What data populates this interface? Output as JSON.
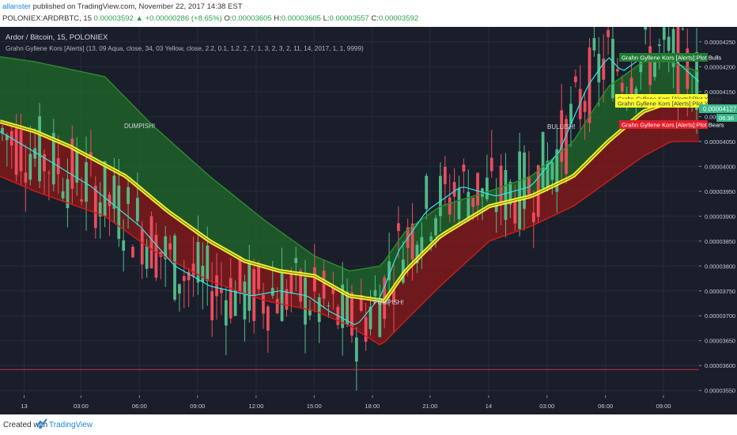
{
  "header": {
    "author": "allanster",
    "published_text": "published on TradingView.com, November 22, 2017 14:38 EST",
    "symbol": "POLONIEX:ARDRBTC, 15",
    "last": "0.00003592",
    "change_arrow": "▲",
    "change": "+0.00000286 (+8.65%)",
    "o_label": "O:",
    "o": "0.00003605",
    "h_label": "H:",
    "h": "0.00003605",
    "l_label": "L:",
    "l": "0.00003557",
    "c_label": "C:",
    "c": "0.00003592"
  },
  "chart_title": "Ardor / Bitcoin, 15, POLONIEX",
  "indicator_title": "Grahn Gyllene Kors [Alerts] (13, 09 Aqua, close, 34, 03 Yellow, close, 2.2, 0.1, 1.2, 2, 7, 1, 3, 2, 3, 2, 11, 14, 2017, 1, 1, 9999)",
  "annotations": {
    "dumpish": "DUMPISH!",
    "pumpish": "PUMPISH!",
    "bullish": "BULLISH!"
  },
  "price_tags": {
    "plot_bulls": "Grahn Gyllene Kors [Alerts]:Plot Bulls",
    "plot_yellow_a": "Grahn Gyllene Kors [Alerts]:Plot Yellow",
    "plot_yellow_b": "Grahn Gyllene Kors [Alerts]:Plot Yellow",
    "plot_bears": "Grahn Gyllene Kors [Alerts]:Plot Bears",
    "last_price": "0.00004127",
    "countdown": "06:36"
  },
  "footer": {
    "created_with": "Created with",
    "brand": "TradingView"
  },
  "colors": {
    "background": "#1a1e2b",
    "up_candle": "#53b987",
    "down_candle": "#eb4d5c",
    "aqua": "#2ee8e8",
    "yellow": "#ffff2e",
    "bull_fill": "#1f6b2a",
    "bear_fill": "#8b1a1a",
    "upper_band": "#2e8b2e",
    "lower_band": "#d11a1a"
  },
  "chart_data": {
    "type": "line",
    "ylim": [
      3.54e-05,
      4.28e-05
    ],
    "yticks": [
      "0.00004250",
      "0.00004200",
      "0.00004150",
      "0.00004100",
      "0.00004050",
      "0.00004000",
      "0.00003950",
      "0.00003900",
      "0.00003850",
      "0.00003800",
      "0.00003750",
      "0.00003700",
      "0.00003650",
      "0.00003600",
      "0.00003550"
    ],
    "ytick_values": [
      4.25e-05,
      4.2e-05,
      4.15e-05,
      4.1e-05,
      4.05e-05,
      4e-05,
      3.95e-05,
      3.9e-05,
      3.85e-05,
      3.8e-05,
      3.75e-05,
      3.7e-05,
      3.65e-05,
      3.6e-05,
      3.55e-05
    ],
    "xticks": [
      "13",
      "03:00",
      "06:00",
      "09:00",
      "12:00",
      "15:00",
      "18:00",
      "21:00",
      "14",
      "03:00",
      "06:00",
      "09:00",
      "12:00"
    ],
    "xtick_pos": [
      0.0345,
      0.1158,
      0.1995,
      0.2826,
      0.3664,
      0.4494,
      0.5327,
      0.6152,
      0.6989,
      0.7825,
      0.8661,
      0.9492,
      1.0324
    ],
    "horizontal_line": 3.592e-05,
    "series": [
      {
        "name": "Plot Bulls",
        "anchors": [
          [
            0.0,
            4.22e-05
          ],
          [
            0.05,
            4.21e-05
          ],
          [
            0.15,
            4.18e-05
          ],
          [
            0.22,
            4.08e-05
          ],
          [
            0.3,
            3.98e-05
          ],
          [
            0.38,
            3.89e-05
          ],
          [
            0.45,
            3.82e-05
          ],
          [
            0.5,
            3.79e-05
          ],
          [
            0.545,
            3.8e-05
          ],
          [
            0.58,
            3.87e-05
          ],
          [
            0.63,
            3.92e-05
          ],
          [
            0.7,
            3.95e-05
          ],
          [
            0.76,
            3.98e-05
          ],
          [
            0.82,
            4.05e-05
          ],
          [
            0.87,
            4.16e-05
          ],
          [
            0.92,
            4.21e-05
          ],
          [
            0.96,
            4.21e-05
          ],
          [
            1.0,
            4.19e-05
          ]
        ]
      },
      {
        "name": "Plot Yellow",
        "anchors": [
          [
            0.0,
            4.09e-05
          ],
          [
            0.05,
            4.07e-05
          ],
          [
            0.1,
            4.04e-05
          ],
          [
            0.18,
            3.98e-05
          ],
          [
            0.24,
            3.91e-05
          ],
          [
            0.3,
            3.85e-05
          ],
          [
            0.35,
            3.81e-05
          ],
          [
            0.4,
            3.79e-05
          ],
          [
            0.45,
            3.78e-05
          ],
          [
            0.5,
            3.74e-05
          ],
          [
            0.55,
            3.73e-05
          ],
          [
            0.58,
            3.79e-05
          ],
          [
            0.63,
            3.86e-05
          ],
          [
            0.7,
            3.92e-05
          ],
          [
            0.76,
            3.94e-05
          ],
          [
            0.82,
            3.98e-05
          ],
          [
            0.87,
            4.05e-05
          ],
          [
            0.92,
            4.11e-05
          ],
          [
            0.96,
            4.13e-05
          ],
          [
            1.0,
            4.14e-05
          ]
        ]
      },
      {
        "name": "Plot Bears",
        "anchors": [
          [
            0.0,
            3.98e-05
          ],
          [
            0.05,
            3.95e-05
          ],
          [
            0.15,
            3.9e-05
          ],
          [
            0.22,
            3.83e-05
          ],
          [
            0.3,
            3.77e-05
          ],
          [
            0.38,
            3.73e-05
          ],
          [
            0.45,
            3.71e-05
          ],
          [
            0.5,
            3.68e-05
          ],
          [
            0.545,
            3.64e-05
          ],
          [
            0.58,
            3.69e-05
          ],
          [
            0.63,
            3.76e-05
          ],
          [
            0.7,
            3.85e-05
          ],
          [
            0.76,
            3.88e-05
          ],
          [
            0.82,
            3.92e-05
          ],
          [
            0.87,
            3.97e-05
          ],
          [
            0.92,
            4.02e-05
          ],
          [
            0.96,
            4.05e-05
          ],
          [
            1.0,
            4.05e-05
          ]
        ]
      },
      {
        "name": "Aqua",
        "anchors": [
          [
            0.0,
            4.07e-05
          ],
          [
            0.06,
            4.02e-05
          ],
          [
            0.13,
            3.96e-05
          ],
          [
            0.2,
            3.88e-05
          ],
          [
            0.25,
            3.8e-05
          ],
          [
            0.3,
            3.76e-05
          ],
          [
            0.36,
            3.74e-05
          ],
          [
            0.4,
            3.75e-05
          ],
          [
            0.44,
            3.74e-05
          ],
          [
            0.47,
            3.71e-05
          ],
          [
            0.51,
            3.68e-05
          ],
          [
            0.545,
            3.74e-05
          ],
          [
            0.57,
            3.83e-05
          ],
          [
            0.61,
            3.91e-05
          ],
          [
            0.66,
            3.96e-05
          ],
          [
            0.71,
            3.94e-05
          ],
          [
            0.76,
            3.96e-05
          ],
          [
            0.8,
            4.03e-05
          ],
          [
            0.84,
            4.16e-05
          ],
          [
            0.87,
            4.22e-05
          ],
          [
            0.89,
            4.19e-05
          ],
          [
            0.92,
            4.22e-05
          ],
          [
            0.96,
            4.22e-05
          ],
          [
            1.0,
            4.17e-05
          ]
        ]
      }
    ],
    "candles_description_omitted": true
  }
}
